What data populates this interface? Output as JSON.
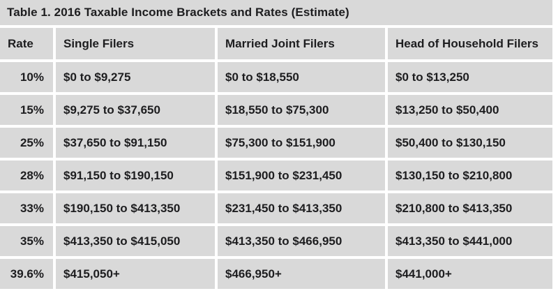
{
  "title": "Table 1. 2016 Taxable Income Brackets and Rates (Estimate)",
  "table": {
    "columns": [
      "Rate",
      "Single Filers",
      "Married Joint Filers",
      "Head of Household Filers"
    ],
    "rows": [
      {
        "rate": "10%",
        "single": "$0 to $9,275",
        "married_joint": "$0 to $18,550",
        "head_of_household": "$0 to $13,250"
      },
      {
        "rate": "15%",
        "single": "$9,275 to $37,650",
        "married_joint": "$18,550 to $75,300",
        "head_of_household": "$13,250 to $50,400"
      },
      {
        "rate": "25%",
        "single": "$37,650 to $91,150",
        "married_joint": "$75,300 to $151,900",
        "head_of_household": "$50,400 to $130,150"
      },
      {
        "rate": "28%",
        "single": "$91,150 to $190,150",
        "married_joint": "$151,900 to $231,450",
        "head_of_household": "$130,150 to $210,800"
      },
      {
        "rate": "33%",
        "single": "$190,150 to $413,350",
        "married_joint": "$231,450 to $413,350",
        "head_of_household": "$210,800 to $413,350"
      },
      {
        "rate": "35%",
        "single": "$413,350 to $415,050",
        "married_joint": "$413,350 to $466,950",
        "head_of_household": "$413,350 to $441,000"
      },
      {
        "rate": "39.6%",
        "single": "$415,050+",
        "married_joint": "$466,950+",
        "head_of_household": "$441,000+"
      }
    ]
  },
  "colors": {
    "cell_background": "#d9d9d9",
    "gutter": "#ffffff",
    "text": "#1d1d1f"
  }
}
